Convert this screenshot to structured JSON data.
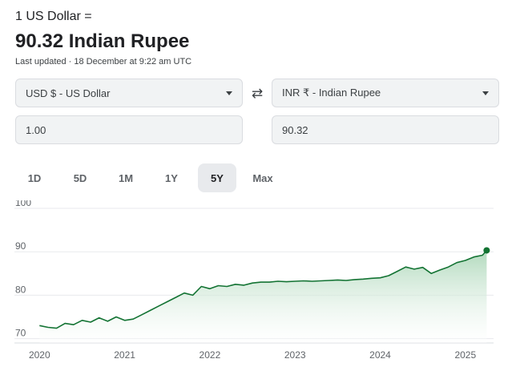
{
  "header": {
    "prefix": "1 US Dollar =",
    "result": "90.32 Indian Rupee",
    "updated": "Last updated · 18 December at 9:22 am UTC"
  },
  "converter": {
    "from_currency": "USD $ - US Dollar",
    "to_currency": "INR ₹ - Indian Rupee",
    "from_amount": "1.00",
    "to_amount": "90.32",
    "swap_icon": "swap-arrows-icon"
  },
  "ranges": {
    "items": [
      "1D",
      "5D",
      "1M",
      "1Y",
      "5Y",
      "Max"
    ],
    "active": "5Y"
  },
  "colors": {
    "line": "#137333",
    "fill_top": "#a8d5b5",
    "gridline": "#e8eaed"
  },
  "chart_data": {
    "type": "area",
    "x": [
      2020.0,
      2020.1,
      2020.2,
      2020.3,
      2020.4,
      2020.5,
      2020.6,
      2020.7,
      2020.8,
      2020.9,
      2021.0,
      2021.1,
      2021.2,
      2021.3,
      2021.4,
      2021.5,
      2021.6,
      2021.7,
      2021.8,
      2021.9,
      2022.0,
      2022.1,
      2022.2,
      2022.3,
      2022.4,
      2022.5,
      2022.6,
      2022.7,
      2022.8,
      2022.9,
      2023.0,
      2023.1,
      2023.2,
      2023.3,
      2023.4,
      2023.5,
      2023.6,
      2023.7,
      2023.8,
      2023.9,
      2024.0,
      2024.1,
      2024.2,
      2024.3,
      2024.4,
      2024.5,
      2024.6,
      2024.7,
      2024.8,
      2024.9,
      2025.0,
      2025.1,
      2025.2,
      2025.25
    ],
    "values": [
      73.0,
      72.6,
      72.4,
      73.5,
      73.2,
      74.2,
      73.8,
      74.8,
      74.0,
      75.0,
      74.2,
      74.5,
      75.5,
      76.5,
      77.5,
      78.5,
      79.5,
      80.5,
      80.0,
      82.0,
      81.5,
      82.2,
      82.0,
      82.5,
      82.3,
      82.8,
      83.0,
      83.0,
      83.2,
      83.1,
      83.2,
      83.3,
      83.2,
      83.3,
      83.4,
      83.5,
      83.4,
      83.6,
      83.7,
      83.9,
      84.0,
      84.5,
      85.5,
      86.5,
      86.0,
      86.4,
      85.0,
      85.8,
      86.5,
      87.5,
      88.0,
      88.8,
      89.2,
      90.32
    ],
    "xticks": [
      "2020",
      "2021",
      "2022",
      "2023",
      "2024",
      "2025"
    ],
    "xtick_values": [
      2020,
      2021,
      2022,
      2023,
      2024,
      2025
    ],
    "yticks": [
      "100",
      "90",
      "80",
      "70"
    ],
    "ytick_values": [
      100,
      90,
      80,
      70
    ],
    "xlim": [
      2019.95,
      2025.35
    ],
    "ylim": [
      69,
      100
    ],
    "grid": true
  }
}
